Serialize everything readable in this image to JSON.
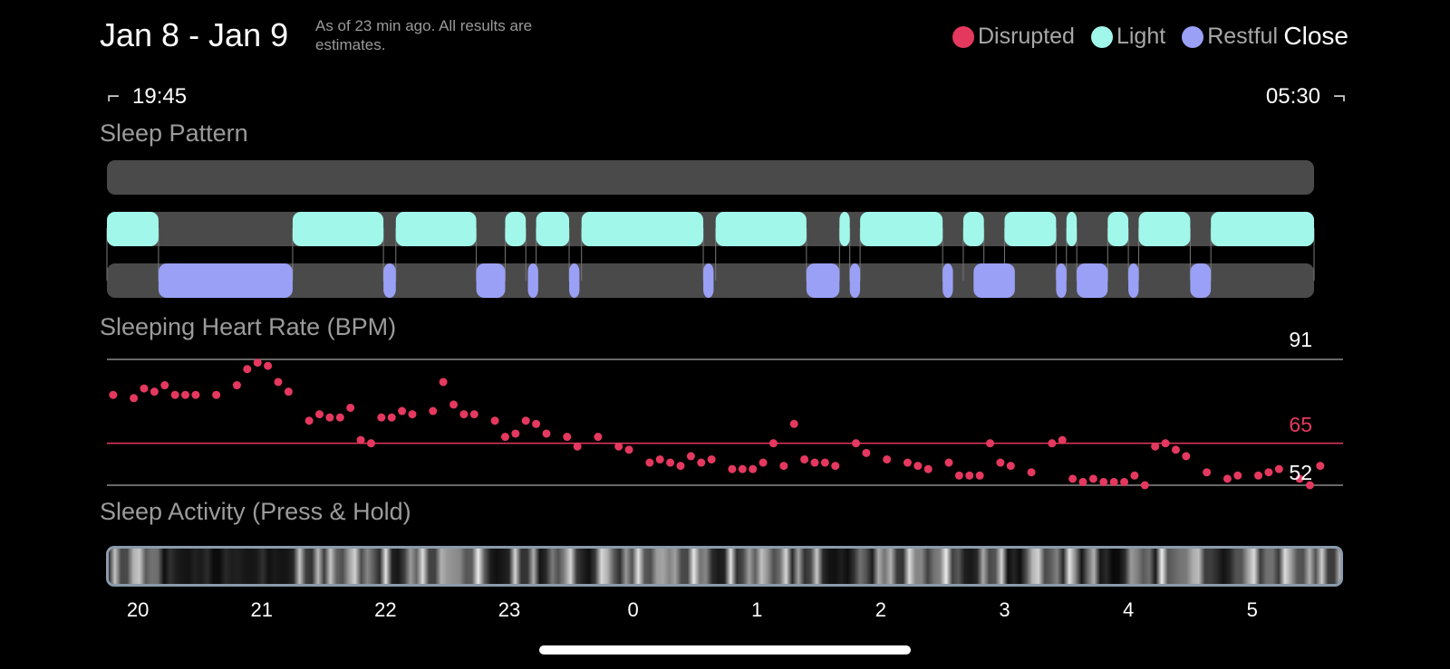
{
  "header": {
    "title": "Jan 8 - Jan 9",
    "subtitle": "As of 23 min ago. All results are estimates.",
    "close_label": "Close"
  },
  "legend": [
    {
      "label": "Disrupted",
      "color": "#e5385f"
    },
    {
      "label": "Light",
      "color": "#a1f8ea"
    },
    {
      "label": "Restful",
      "color": "#9aa0f6"
    }
  ],
  "range": {
    "start": "19:45",
    "end": "05:30"
  },
  "sleep_pattern": {
    "title": "Sleep Pattern",
    "track_color": "#4a4a4a",
    "light_segments": [
      [
        "19:45",
        "20:10"
      ],
      [
        "21:15",
        "21:59"
      ],
      [
        "22:05",
        "22:44"
      ],
      [
        "22:58",
        "23:08"
      ],
      [
        "23:13",
        "23:29"
      ],
      [
        "23:35",
        "00:34"
      ],
      [
        "00:40",
        "01:24"
      ],
      [
        "01:40",
        "01:45"
      ],
      [
        "01:50",
        "02:30"
      ],
      [
        "02:40",
        "02:50"
      ],
      [
        "03:00",
        "03:25"
      ],
      [
        "03:30",
        "03:35"
      ],
      [
        "03:50",
        "04:00"
      ],
      [
        "04:05",
        "04:30"
      ],
      [
        "04:40",
        "05:30"
      ]
    ],
    "restful_segments": [
      [
        "20:10",
        "21:15"
      ],
      [
        "21:59",
        "22:05"
      ],
      [
        "22:44",
        "22:58"
      ],
      [
        "23:09",
        "23:14"
      ],
      [
        "23:29",
        "23:34"
      ],
      [
        "00:34",
        "00:39"
      ],
      [
        "01:24",
        "01:40"
      ],
      [
        "01:45",
        "01:50"
      ],
      [
        "02:30",
        "02:35"
      ],
      [
        "02:45",
        "03:05"
      ],
      [
        "03:25",
        "03:30"
      ],
      [
        "03:35",
        "03:50"
      ],
      [
        "04:00",
        "04:05"
      ],
      [
        "04:30",
        "04:40"
      ]
    ]
  },
  "heart_rate": {
    "title": "Sleeping Heart Rate (BPM)",
    "max": "91",
    "avg": "65",
    "min": "52",
    "avg_color": "#e5385f",
    "points": [
      [
        "19:48",
        80
      ],
      [
        "19:58",
        79
      ],
      [
        "20:03",
        82
      ],
      [
        "20:08",
        81
      ],
      [
        "20:13",
        83
      ],
      [
        "20:18",
        80
      ],
      [
        "20:23",
        80
      ],
      [
        "20:28",
        80
      ],
      [
        "20:38",
        80
      ],
      [
        "20:48",
        83
      ],
      [
        "20:53",
        88
      ],
      [
        "20:58",
        90
      ],
      [
        "21:03",
        89
      ],
      [
        "21:08",
        84
      ],
      [
        "21:13",
        81
      ],
      [
        "21:23",
        72
      ],
      [
        "21:28",
        74
      ],
      [
        "21:33",
        73
      ],
      [
        "21:38",
        73
      ],
      [
        "21:43",
        76
      ],
      [
        "21:48",
        66
      ],
      [
        "21:53",
        65
      ],
      [
        "21:58",
        73
      ],
      [
        "22:03",
        73
      ],
      [
        "22:08",
        75
      ],
      [
        "22:13",
        74
      ],
      [
        "22:23",
        75
      ],
      [
        "22:28",
        84
      ],
      [
        "22:33",
        77
      ],
      [
        "22:38",
        74
      ],
      [
        "22:43",
        74
      ],
      [
        "22:53",
        72
      ],
      [
        "22:58",
        67
      ],
      [
        "23:03",
        68
      ],
      [
        "23:08",
        72
      ],
      [
        "23:13",
        71
      ],
      [
        "23:18",
        68
      ],
      [
        "23:28",
        67
      ],
      [
        "23:33",
        64
      ],
      [
        "23:43",
        67
      ],
      [
        "23:53",
        64
      ],
      [
        "23:58",
        63
      ],
      [
        "00:08",
        59
      ],
      [
        "00:13",
        60
      ],
      [
        "00:18",
        59
      ],
      [
        "00:23",
        58
      ],
      [
        "00:28",
        61
      ],
      [
        "00:33",
        59
      ],
      [
        "00:38",
        60
      ],
      [
        "00:48",
        57
      ],
      [
        "00:53",
        57
      ],
      [
        "00:58",
        57
      ],
      [
        "01:03",
        59
      ],
      [
        "01:08",
        65
      ],
      [
        "01:13",
        58
      ],
      [
        "01:18",
        71
      ],
      [
        "01:23",
        60
      ],
      [
        "01:28",
        59
      ],
      [
        "01:33",
        59
      ],
      [
        "01:38",
        58
      ],
      [
        "01:48",
        65
      ],
      [
        "01:53",
        62
      ],
      [
        "02:03",
        60
      ],
      [
        "02:13",
        59
      ],
      [
        "02:18",
        58
      ],
      [
        "02:23",
        57
      ],
      [
        "02:33",
        59
      ],
      [
        "02:38",
        55
      ],
      [
        "02:43",
        55
      ],
      [
        "02:48",
        55
      ],
      [
        "02:53",
        65
      ],
      [
        "02:58",
        59
      ],
      [
        "03:03",
        58
      ],
      [
        "03:13",
        56
      ],
      [
        "03:23",
        65
      ],
      [
        "03:28",
        66
      ],
      [
        "03:33",
        54
      ],
      [
        "03:38",
        53
      ],
      [
        "03:43",
        54
      ],
      [
        "03:48",
        53
      ],
      [
        "03:53",
        53
      ],
      [
        "03:58",
        53
      ],
      [
        "04:03",
        55
      ],
      [
        "04:08",
        52
      ],
      [
        "04:13",
        64
      ],
      [
        "04:18",
        65
      ],
      [
        "04:23",
        63
      ],
      [
        "04:28",
        61
      ],
      [
        "04:38",
        56
      ],
      [
        "04:48",
        54
      ],
      [
        "04:53",
        55
      ],
      [
        "05:03",
        55
      ],
      [
        "05:08",
        56
      ],
      [
        "05:13",
        57
      ],
      [
        "05:23",
        54
      ],
      [
        "05:28",
        52
      ],
      [
        "05:33",
        58
      ]
    ]
  },
  "sleep_activity": {
    "title": "Sleep Activity (Press & Hold)",
    "border_color": "#8b9bad",
    "hour_ticks": [
      "20",
      "21",
      "22",
      "23",
      "0",
      "1",
      "2",
      "3",
      "4",
      "5"
    ]
  },
  "colors": {
    "light": "#a1f8ea",
    "restful": "#9aa0f6",
    "disrupted": "#e5385f",
    "track": "#4a4a4a"
  }
}
